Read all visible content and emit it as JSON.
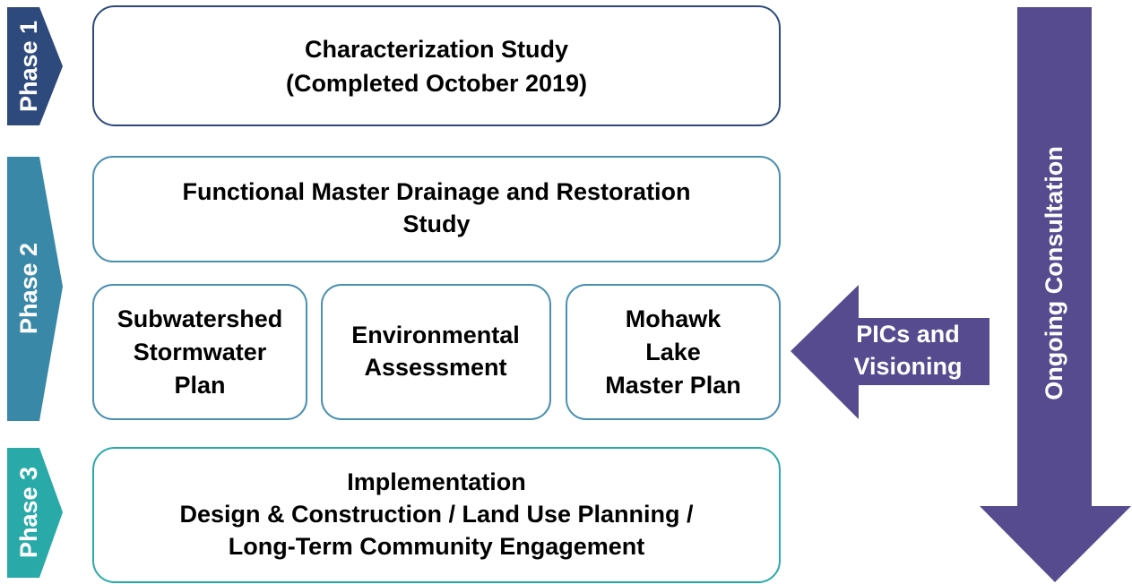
{
  "phases": [
    {
      "label": "Phase 1",
      "boxes": [
        {
          "lines": [
            "Characterization Study",
            "(Completed October 2019)"
          ]
        }
      ]
    },
    {
      "label": "Phase 2",
      "boxes": [
        {
          "lines": [
            "Functional Master Drainage and Restoration",
            "Study"
          ]
        },
        {
          "lines": [
            "Subwatershed",
            "Stormwater",
            "Plan"
          ]
        },
        {
          "lines": [
            "Environmental",
            "Assessment"
          ]
        },
        {
          "lines": [
            "Mohawk",
            "Lake",
            "Master Plan"
          ]
        }
      ]
    },
    {
      "label": "Phase 3",
      "boxes": [
        {
          "lines": [
            "Implementation",
            "Design & Construction / Land Use Planning /",
            "Long-Term Community Engagement"
          ]
        }
      ]
    }
  ],
  "arrows": {
    "consultation": "Ongoing Consultation",
    "input": [
      "PICs and",
      "Visioning"
    ]
  }
}
